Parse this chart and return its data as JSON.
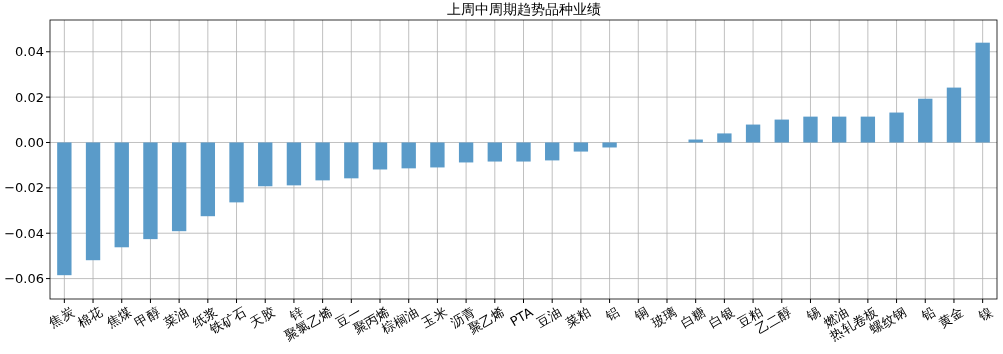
{
  "chart_data": {
    "type": "bar",
    "title": "上周中周期趋势品种业绩",
    "categories": [
      "焦炭",
      "棉花",
      "焦煤",
      "甲醇",
      "菜油",
      "纸浆",
      "铁矿石",
      "天胶",
      "锌",
      "聚氯乙烯",
      "豆一",
      "聚丙烯",
      "棕榈油",
      "玉米",
      "沥青",
      "聚乙烯",
      "PTA",
      "豆油",
      "菜粕",
      "铝",
      "铜",
      "玻璃",
      "白糖",
      "白银",
      "豆粕",
      "乙二醇",
      "锡",
      "燃油",
      "热轧卷板",
      "螺纹钢",
      "铅",
      "黄金",
      "镍"
    ],
    "values": [
      -0.0585,
      -0.0519,
      -0.0462,
      -0.0426,
      -0.0391,
      -0.0325,
      -0.0264,
      -0.0193,
      -0.0189,
      -0.0167,
      -0.0158,
      -0.0119,
      -0.0114,
      -0.011,
      -0.0088,
      -0.0084,
      -0.0084,
      -0.0079,
      -0.004,
      -0.0022,
      0,
      0,
      0.0013,
      0.004,
      0.0079,
      0.0101,
      0.0114,
      0.0114,
      0.0114,
      0.0132,
      0.0193,
      0.0242,
      0.044
    ],
    "color": "#5a9bc9",
    "ylim": [
      -0.069,
      0.054
    ],
    "yticks": [
      {
        "value": -0.06,
        "label": "−0.06"
      },
      {
        "value": -0.04,
        "label": "−0.04"
      },
      {
        "value": -0.02,
        "label": "−0.02"
      },
      {
        "value": 0,
        "label": "0.00"
      },
      {
        "value": 0.02,
        "label": "0.02"
      },
      {
        "value": 0.04,
        "label": "0.04"
      }
    ],
    "grid": true
  }
}
